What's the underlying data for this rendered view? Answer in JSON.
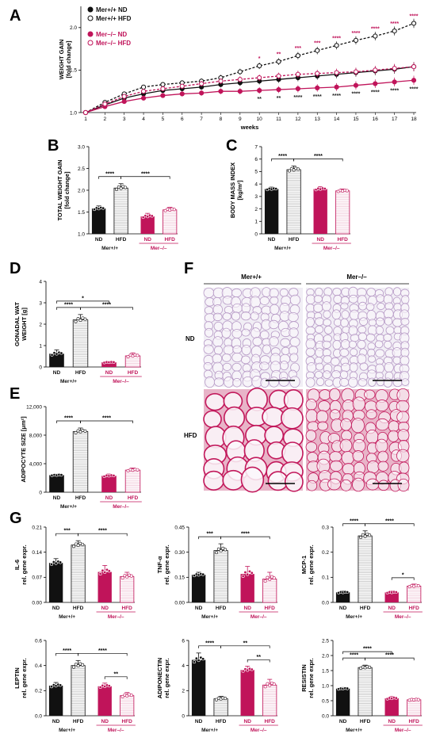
{
  "colors": {
    "black": "#111111",
    "mer": "#c0145a",
    "grey": "#9a9a9a"
  },
  "panels": {
    "A": "A",
    "B": "B",
    "C": "C",
    "D": "D",
    "E": "E",
    "F": "F",
    "G": "G"
  },
  "group_labels": {
    "wt": "Mer+/+",
    "ko": "Mer–/–",
    "nd": "ND",
    "hfd": "HFD"
  },
  "histology": {
    "col_wt": "Mer+/+",
    "col_ko": "Mer–/–",
    "row_nd": "ND",
    "row_hfd": "HFD",
    "colors": {
      "nd_bg": "#f1eef5",
      "nd_line": "#b79ac6",
      "hfd_bg": "#e8b4c8",
      "hfd_line": "#c2185b"
    }
  },
  "chart_data": [
    {
      "id": "A",
      "type": "line",
      "ylabel": [
        "WEIGHT GAIN",
        "[fold change]"
      ],
      "xlabel": "weeks",
      "x": [
        1,
        2,
        3,
        4,
        5,
        6,
        7,
        8,
        9,
        10,
        11,
        12,
        13,
        14,
        15,
        16,
        17,
        18
      ],
      "ylim": [
        1.0,
        2.25
      ],
      "yticks": [
        "1.0",
        "1.5",
        "2.0"
      ],
      "series": [
        {
          "name": "Mer+/+ ND",
          "color": "black",
          "filled": true,
          "dash": false,
          "values": [
            1.0,
            1.09,
            1.17,
            1.22,
            1.26,
            1.28,
            1.3,
            1.33,
            1.35,
            1.37,
            1.39,
            1.41,
            1.43,
            1.45,
            1.47,
            1.49,
            1.51,
            1.54
          ]
        },
        {
          "name": "Mer+/+ HFD",
          "color": "black",
          "filled": false,
          "dash": true,
          "values": [
            1.0,
            1.12,
            1.22,
            1.3,
            1.33,
            1.35,
            1.37,
            1.41,
            1.48,
            1.55,
            1.6,
            1.67,
            1.73,
            1.79,
            1.85,
            1.9,
            1.96,
            2.05
          ]
        },
        {
          "name": "Mer–/– ND",
          "color": "mer",
          "filled": true,
          "dash": false,
          "values": [
            1.0,
            1.07,
            1.13,
            1.17,
            1.2,
            1.22,
            1.23,
            1.25,
            1.25,
            1.26,
            1.27,
            1.28,
            1.29,
            1.3,
            1.32,
            1.34,
            1.36,
            1.38
          ]
        },
        {
          "name": "Mer–/– HFD",
          "color": "mer",
          "filled": false,
          "dash": true,
          "values": [
            1.0,
            1.1,
            1.19,
            1.25,
            1.28,
            1.31,
            1.34,
            1.37,
            1.39,
            1.41,
            1.43,
            1.45,
            1.46,
            1.47,
            1.48,
            1.5,
            1.52,
            1.54
          ]
        }
      ],
      "annotations_top": [
        {
          "x": 10,
          "text": "*"
        },
        {
          "x": 11,
          "text": "**"
        },
        {
          "x": 12,
          "text": "***"
        },
        {
          "x": 13,
          "text": "***"
        },
        {
          "x": 14,
          "text": "****"
        },
        {
          "x": 15,
          "text": "****"
        },
        {
          "x": 16,
          "text": "****"
        },
        {
          "x": 17,
          "text": "****"
        },
        {
          "x": 18,
          "text": "****"
        }
      ],
      "annotations_bottom": [
        {
          "x": 10,
          "text": "**"
        },
        {
          "x": 11,
          "text": "**"
        },
        {
          "x": 12,
          "text": "****"
        },
        {
          "x": 13,
          "text": "****"
        },
        {
          "x": 14,
          "text": "****"
        },
        {
          "x": 15,
          "text": "****"
        },
        {
          "x": 16,
          "text": "****"
        },
        {
          "x": 17,
          "text": "****"
        },
        {
          "x": 18,
          "text": "****"
        }
      ],
      "legend": [
        "Mer+/+ ND",
        "Mer+/+ HFD",
        "Mer–/– ND",
        "Mer–/– HFD"
      ]
    },
    {
      "id": "B",
      "type": "bar",
      "ylabel": [
        "TOTAL WEIGHT GAIN",
        "[fold change]"
      ],
      "categories": [
        "ND",
        "HFD",
        "ND",
        "HFD"
      ],
      "values": [
        1.58,
        2.05,
        1.4,
        1.55
      ],
      "errors": [
        0.06,
        0.1,
        0.07,
        0.06
      ],
      "ylim": [
        1.0,
        3.0
      ],
      "yticks": [
        "1.0",
        "1.5",
        "2.0",
        "2.5",
        "3.0"
      ],
      "brackets": [
        {
          "from": 0,
          "to": 1,
          "text": "****"
        },
        {
          "from": 1,
          "to": 3,
          "text": "****"
        }
      ]
    },
    {
      "id": "C",
      "type": "bar",
      "ylabel": [
        "BODY MASS INDEX",
        "[kg/m²]"
      ],
      "categories": [
        "ND",
        "HFD",
        "ND",
        "HFD"
      ],
      "values": [
        3.6,
        5.15,
        3.6,
        3.45
      ],
      "errors": [
        0.15,
        0.3,
        0.18,
        0.15
      ],
      "ylim": [
        0,
        7
      ],
      "yticks": [
        "0",
        "1",
        "2",
        "3",
        "4",
        "5",
        "6",
        "7"
      ],
      "brackets": [
        {
          "from": 0,
          "to": 1,
          "text": "****"
        },
        {
          "from": 1,
          "to": 3,
          "text": "****"
        }
      ]
    },
    {
      "id": "D",
      "type": "bar",
      "ylabel": [
        "GONADAL WAT",
        "WEIGHT [g]"
      ],
      "categories": [
        "ND",
        "HFD",
        "ND",
        "HFD"
      ],
      "values": [
        0.62,
        2.2,
        0.22,
        0.52
      ],
      "errors": [
        0.18,
        0.25,
        0.05,
        0.14
      ],
      "ylim": [
        0,
        4
      ],
      "yticks": [
        "0",
        "1",
        "2",
        "3",
        "4"
      ],
      "brackets": [
        {
          "from": 0,
          "to": 1,
          "text": "****"
        },
        {
          "from": 0,
          "to": 2,
          "text": "*",
          "level": 2
        },
        {
          "from": 1,
          "to": 3,
          "text": "****"
        }
      ]
    },
    {
      "id": "E",
      "type": "bar",
      "ylabel": [
        "ADIPOCYTE SIZE [μm²]"
      ],
      "categories": [
        "ND",
        "HFD",
        "ND",
        "HFD"
      ],
      "values": [
        2400,
        8500,
        2300,
        3100
      ],
      "errors": [
        150,
        500,
        250,
        300
      ],
      "ylim": [
        0,
        12000
      ],
      "yticks": [
        "0",
        "4,000",
        "8,000",
        "12,000"
      ],
      "brackets": [
        {
          "from": 0,
          "to": 1,
          "text": "****"
        },
        {
          "from": 1,
          "to": 3,
          "text": "****"
        }
      ]
    },
    {
      "id": "G1",
      "type": "bar",
      "ylabel": [
        "IL-6",
        "rel. gene expr."
      ],
      "categories": [
        "ND",
        "HFD",
        "ND",
        "HFD"
      ],
      "values": [
        0.11,
        0.16,
        0.085,
        0.072
      ],
      "errors": [
        0.012,
        0.012,
        0.018,
        0.012
      ],
      "ylim": [
        0,
        0.21
      ],
      "yticks": [
        "0.00",
        "0.07",
        "0.14",
        "0.21"
      ],
      "brackets": [
        {
          "from": 0,
          "to": 1,
          "text": "***"
        },
        {
          "from": 1,
          "to": 3,
          "text": "****"
        }
      ]
    },
    {
      "id": "G2",
      "type": "bar",
      "ylabel": [
        "TNF-α",
        "rel. gene expr."
      ],
      "categories": [
        "ND",
        "HFD",
        "ND",
        "HFD"
      ],
      "values": [
        0.165,
        0.31,
        0.17,
        0.14
      ],
      "errors": [
        0.015,
        0.04,
        0.045,
        0.04
      ],
      "ylim": [
        0,
        0.45
      ],
      "yticks": [
        "0.00",
        "0.15",
        "0.30",
        "0.45"
      ],
      "brackets": [
        {
          "from": 0,
          "to": 1,
          "text": "***"
        },
        {
          "from": 1,
          "to": 3,
          "text": "****"
        }
      ]
    },
    {
      "id": "G3",
      "type": "bar",
      "ylabel": [
        "MCP-1",
        "rel. gene expr."
      ],
      "categories": [
        "ND",
        "HFD",
        "ND",
        "HFD"
      ],
      "values": [
        0.04,
        0.265,
        0.04,
        0.065
      ],
      "errors": [
        0.006,
        0.02,
        0.006,
        0.008
      ],
      "ylim": [
        0,
        0.3
      ],
      "yticks": [
        "0.0",
        "0.1",
        "0.2",
        "0.3"
      ],
      "brackets": [
        {
          "from": 0,
          "to": 1,
          "text": "****"
        },
        {
          "from": 1,
          "to": 3,
          "text": "****"
        },
        {
          "from": 2,
          "to": 3,
          "text": "*",
          "level": 0
        }
      ]
    },
    {
      "id": "G4",
      "type": "bar",
      "ylabel": [
        "LEPTIN",
        "rel. gene expr."
      ],
      "categories": [
        "ND",
        "HFD",
        "ND",
        "HFD"
      ],
      "values": [
        0.24,
        0.4,
        0.235,
        0.16
      ],
      "errors": [
        0.025,
        0.04,
        0.025,
        0.025
      ],
      "ylim": [
        0,
        0.6
      ],
      "yticks": [
        "0.0",
        "0.2",
        "0.4",
        "0.6"
      ],
      "brackets": [
        {
          "from": 0,
          "to": 1,
          "text": "****"
        },
        {
          "from": 1,
          "to": 3,
          "text": "****"
        },
        {
          "from": 2,
          "to": 3,
          "text": "**",
          "level": 0
        }
      ]
    },
    {
      "id": "G5",
      "type": "bar",
      "ylabel": [
        "ADIPONECTIN",
        "rel. gene expr."
      ],
      "categories": [
        "ND",
        "HFD",
        "ND",
        "HFD"
      ],
      "values": [
        4.45,
        1.35,
        3.65,
        2.45
      ],
      "errors": [
        0.55,
        0.2,
        0.3,
        0.45
      ],
      "ylim": [
        0,
        6
      ],
      "yticks": [
        "0",
        "2",
        "4",
        "6"
      ],
      "brackets": [
        {
          "from": 0,
          "to": 1,
          "text": "****"
        },
        {
          "from": 1,
          "to": 3,
          "text": "**"
        },
        {
          "from": 2,
          "to": 3,
          "text": "**",
          "level": 0
        }
      ]
    },
    {
      "id": "G6",
      "type": "bar",
      "ylabel": [
        "RESISTIN",
        "rel. gene expr."
      ],
      "categories": [
        "ND",
        "HFD",
        "ND",
        "HFD"
      ],
      "values": [
        0.9,
        1.6,
        0.58,
        0.53
      ],
      "errors": [
        0.04,
        0.08,
        0.06,
        0.04
      ],
      "ylim": [
        0,
        2.5
      ],
      "yticks": [
        "0.0",
        "0.5",
        "1.0",
        "1.5",
        "2.0",
        "2.5"
      ],
      "brackets": [
        {
          "from": 0,
          "to": 1,
          "text": "****"
        },
        {
          "from": 0,
          "to": 2,
          "text": "****",
          "level": 2
        },
        {
          "from": 1,
          "to": 3,
          "text": "****"
        }
      ]
    }
  ]
}
